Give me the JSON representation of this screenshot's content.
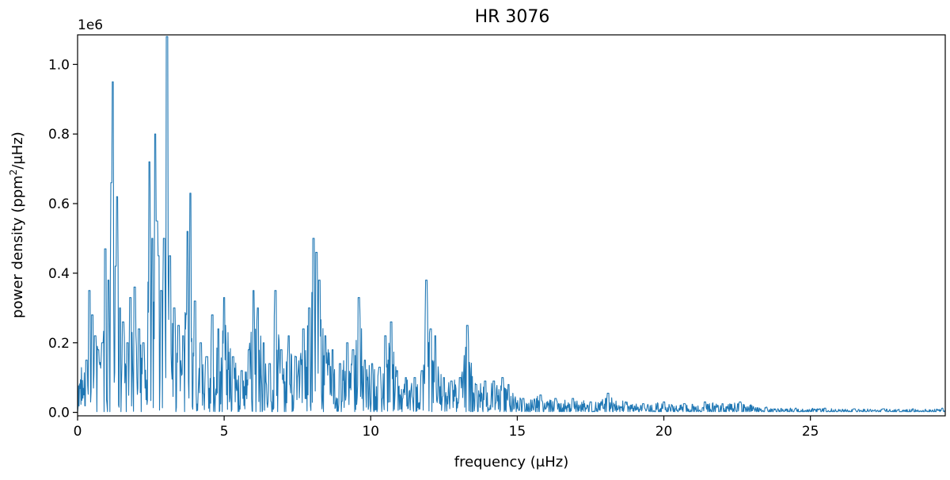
{
  "chart_data": {
    "type": "line",
    "title": "HR 3076",
    "xlabel": "frequency (μHz)",
    "ylabel_parts": {
      "prefix": "power density (ppm",
      "superscript": "2",
      "suffix": "/μHz)"
    },
    "y_offset_label": "1e6",
    "xlim": [
      0,
      29.6
    ],
    "ylim": [
      -0.01,
      1.085
    ],
    "y_scale_factor": 1000000,
    "x_ticks": [
      {
        "value": 0,
        "label": "0"
      },
      {
        "value": 5,
        "label": "5"
      },
      {
        "value": 10,
        "label": "10"
      },
      {
        "value": 15,
        "label": "15"
      },
      {
        "value": 20,
        "label": "20"
      },
      {
        "value": 25,
        "label": "25"
      }
    ],
    "y_ticks": [
      {
        "value": 0.0,
        "label": "0.0"
      },
      {
        "value": 0.2,
        "label": "0.2"
      },
      {
        "value": 0.4,
        "label": "0.4"
      },
      {
        "value": 0.6,
        "label": "0.6"
      },
      {
        "value": 0.8,
        "label": "0.8"
      },
      {
        "value": 1.0,
        "label": "1.0"
      }
    ],
    "grid": false,
    "legend": "none",
    "series": [
      {
        "color": "#1f77b4",
        "peaks": [
          [
            0.3,
            0.15
          ],
          [
            0.4,
            0.35
          ],
          [
            0.5,
            0.28
          ],
          [
            0.6,
            0.22
          ],
          [
            0.7,
            0.18
          ],
          [
            0.85,
            0.2
          ],
          [
            0.95,
            0.47
          ],
          [
            1.05,
            0.38
          ],
          [
            1.15,
            0.66
          ],
          [
            1.2,
            0.95
          ],
          [
            1.3,
            0.42
          ],
          [
            1.35,
            0.62
          ],
          [
            1.45,
            0.3
          ],
          [
            1.55,
            0.26
          ],
          [
            1.7,
            0.2
          ],
          [
            1.8,
            0.33
          ],
          [
            1.95,
            0.36
          ],
          [
            2.1,
            0.24
          ],
          [
            2.25,
            0.2
          ],
          [
            2.45,
            0.72
          ],
          [
            2.55,
            0.5
          ],
          [
            2.65,
            0.8
          ],
          [
            2.7,
            0.55
          ],
          [
            2.75,
            0.45
          ],
          [
            2.85,
            0.35
          ],
          [
            2.95,
            0.5
          ],
          [
            3.05,
            1.08
          ],
          [
            3.15,
            0.45
          ],
          [
            3.3,
            0.3
          ],
          [
            3.45,
            0.25
          ],
          [
            3.6,
            0.22
          ],
          [
            3.75,
            0.52
          ],
          [
            3.85,
            0.63
          ],
          [
            4.0,
            0.32
          ],
          [
            4.2,
            0.2
          ],
          [
            4.4,
            0.16
          ],
          [
            4.6,
            0.28
          ],
          [
            4.8,
            0.24
          ],
          [
            5.0,
            0.33
          ],
          [
            5.3,
            0.16
          ],
          [
            5.6,
            0.12
          ],
          [
            5.85,
            0.18
          ],
          [
            6.0,
            0.35
          ],
          [
            6.15,
            0.3
          ],
          [
            6.35,
            0.2
          ],
          [
            6.55,
            0.14
          ],
          [
            6.75,
            0.35
          ],
          [
            6.95,
            0.18
          ],
          [
            7.2,
            0.22
          ],
          [
            7.45,
            0.16
          ],
          [
            7.7,
            0.24
          ],
          [
            7.9,
            0.3
          ],
          [
            8.05,
            0.5
          ],
          [
            8.15,
            0.46
          ],
          [
            8.25,
            0.38
          ],
          [
            8.45,
            0.22
          ],
          [
            8.7,
            0.18
          ],
          [
            8.95,
            0.14
          ],
          [
            9.2,
            0.2
          ],
          [
            9.4,
            0.18
          ],
          [
            9.6,
            0.33
          ],
          [
            9.8,
            0.15
          ],
          [
            10.05,
            0.14
          ],
          [
            10.3,
            0.13
          ],
          [
            10.5,
            0.22
          ],
          [
            10.7,
            0.26
          ],
          [
            10.9,
            0.12
          ],
          [
            11.2,
            0.1
          ],
          [
            11.5,
            0.1
          ],
          [
            11.75,
            0.12
          ],
          [
            11.9,
            0.38
          ],
          [
            12.05,
            0.24
          ],
          [
            12.2,
            0.22
          ],
          [
            12.5,
            0.1
          ],
          [
            12.75,
            0.09
          ],
          [
            13.05,
            0.1
          ],
          [
            13.3,
            0.25
          ],
          [
            13.6,
            0.08
          ],
          [
            13.9,
            0.09
          ],
          [
            14.2,
            0.09
          ],
          [
            14.5,
            0.1
          ],
          [
            14.7,
            0.08
          ],
          [
            15.2,
            0.04
          ],
          [
            15.8,
            0.05
          ],
          [
            16.3,
            0.04
          ],
          [
            16.9,
            0.04
          ],
          [
            17.5,
            0.03
          ],
          [
            18.1,
            0.055
          ],
          [
            18.7,
            0.03
          ],
          [
            19.3,
            0.025
          ],
          [
            20.0,
            0.03
          ],
          [
            20.7,
            0.025
          ],
          [
            21.4,
            0.03
          ],
          [
            22.0,
            0.025
          ],
          [
            22.6,
            0.03
          ],
          [
            23.5,
            0.015
          ],
          [
            24.5,
            0.012
          ],
          [
            25.5,
            0.012
          ],
          [
            26.5,
            0.01
          ],
          [
            27.5,
            0.01
          ],
          [
            28.5,
            0.01
          ],
          [
            29.5,
            0.012
          ]
        ]
      }
    ]
  }
}
